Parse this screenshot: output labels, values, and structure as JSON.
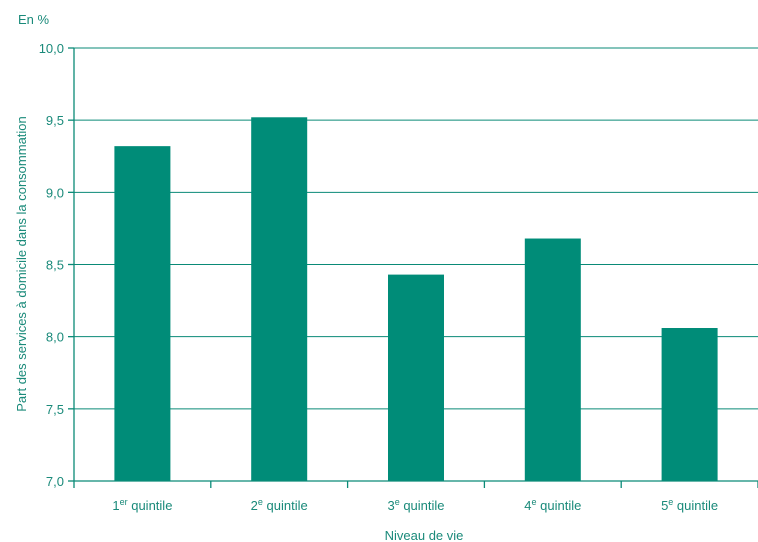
{
  "chart_data": {
    "type": "bar",
    "unit_label": "En %",
    "ylabel": "Part des services à domicile dans la consommation",
    "xlabel": "Niveau de vie",
    "ylim": [
      7.0,
      10.0
    ],
    "yticks": [
      "7,0",
      "7,5",
      "8,0",
      "8,5",
      "9,0",
      "9,5",
      "10,0"
    ],
    "grid": true,
    "categories": [
      {
        "num": "1",
        "sup": "er",
        "rest": " quintile"
      },
      {
        "num": "2",
        "sup": "e",
        "rest": " quintile"
      },
      {
        "num": "3",
        "sup": "e",
        "rest": " quintile"
      },
      {
        "num": "4",
        "sup": "e",
        "rest": " quintile"
      },
      {
        "num": "5",
        "sup": "e",
        "rest": " quintile"
      }
    ],
    "values": [
      9.32,
      9.52,
      8.43,
      8.68,
      8.06
    ],
    "colors": {
      "bar": "#008c78",
      "text": "#1a8a7a",
      "axis": "#0a8a77"
    }
  }
}
